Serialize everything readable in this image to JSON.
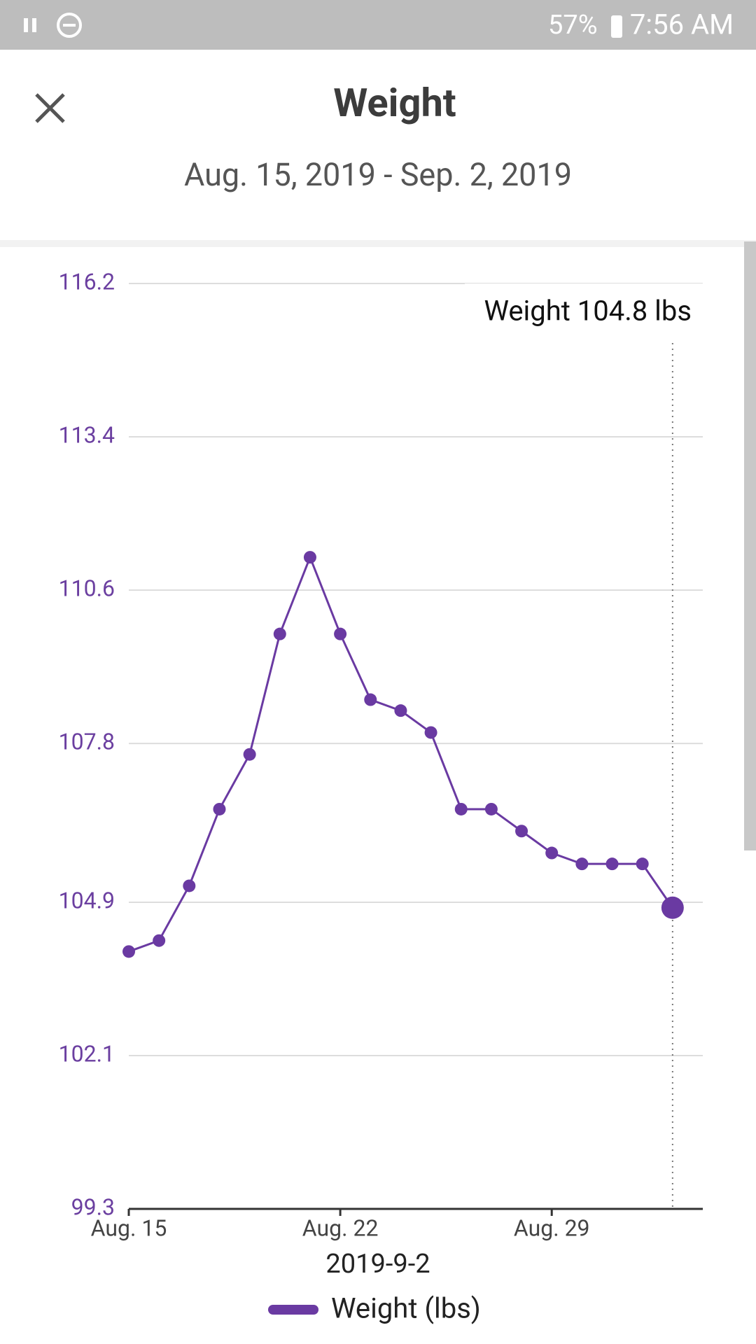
{
  "status_bar": {
    "battery": "57%",
    "time": "7:56 AM"
  },
  "header": {
    "title": "Weight",
    "subtitle": "Aug. 15, 2019 - Sep. 2, 2019"
  },
  "chart_data": {
    "type": "line",
    "x": [
      "2019-08-15",
      "2019-08-16",
      "2019-08-17",
      "2019-08-18",
      "2019-08-19",
      "2019-08-20",
      "2019-08-21",
      "2019-08-22",
      "2019-08-23",
      "2019-08-24",
      "2019-08-25",
      "2019-08-26",
      "2019-08-27",
      "2019-08-28",
      "2019-08-29",
      "2019-08-30",
      "2019-08-31",
      "2019-09-01",
      "2019-09-02"
    ],
    "series": [
      {
        "name": "Weight (lbs)",
        "color": "#6a3aa2",
        "values": [
          104.0,
          104.2,
          105.2,
          106.6,
          107.6,
          109.8,
          111.2,
          109.8,
          108.6,
          108.4,
          108.0,
          106.6,
          106.6,
          106.2,
          105.8,
          105.6,
          105.6,
          105.6,
          104.8
        ]
      }
    ],
    "xlim": [
      "2019-08-15",
      "2019-09-03"
    ],
    "xticks": [
      {
        "value": "2019-08-15",
        "label": "Aug. 15"
      },
      {
        "value": "2019-08-22",
        "label": "Aug. 22"
      },
      {
        "value": "2019-08-29",
        "label": "Aug. 29"
      }
    ],
    "ylim": [
      99.3,
      116.2
    ],
    "yticks": [
      116.2,
      113.4,
      110.6,
      107.8,
      104.9,
      102.1,
      99.3
    ],
    "grid": true,
    "x_label": "2019-9-2",
    "tooltip": "Weight 104.8 lbs"
  }
}
